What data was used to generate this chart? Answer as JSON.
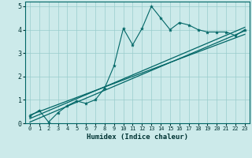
{
  "xlabel": "Humidex (Indice chaleur)",
  "bg_color": "#cceaea",
  "line_color": "#006666",
  "grid_color": "#99cccc",
  "xlim": [
    -0.5,
    23.5
  ],
  "ylim": [
    0,
    5.2
  ],
  "xticks": [
    0,
    1,
    2,
    3,
    4,
    5,
    6,
    7,
    8,
    9,
    10,
    11,
    12,
    13,
    14,
    15,
    16,
    17,
    18,
    19,
    20,
    21,
    22,
    23
  ],
  "yticks": [
    0,
    1,
    2,
    3,
    4,
    5
  ],
  "series1_x": [
    0,
    1,
    2,
    3,
    4,
    5,
    6,
    7,
    8,
    9,
    10,
    11,
    12,
    13,
    14,
    15,
    16,
    17,
    18,
    19,
    20,
    21,
    22,
    23
  ],
  "series1_y": [
    0.3,
    0.55,
    0.05,
    0.45,
    0.75,
    0.95,
    0.85,
    1.0,
    1.5,
    2.45,
    4.05,
    3.35,
    4.05,
    5.0,
    4.5,
    4.0,
    4.3,
    4.2,
    4.0,
    3.9,
    3.9,
    3.9,
    3.75,
    4.0
  ],
  "series2_x": [
    0,
    23
  ],
  "series2_y": [
    0.05,
    3.95
  ],
  "series3_x": [
    0,
    23
  ],
  "series3_y": [
    0.2,
    4.1
  ],
  "series4_x": [
    0,
    23
  ],
  "series4_y": [
    0.35,
    3.8
  ]
}
